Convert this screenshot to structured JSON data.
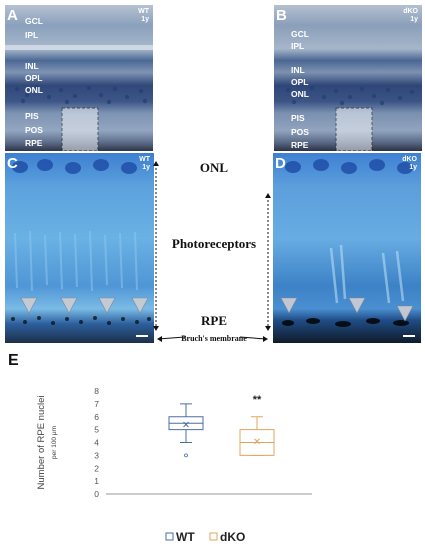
{
  "panels": {
    "A": {
      "letter": "A",
      "tag_group": "WT",
      "tag_age": "1y",
      "layers": [
        "GCL",
        "IPL",
        "INL",
        "OPL",
        "ONL",
        "PIS",
        "POS",
        "RPE"
      ]
    },
    "B": {
      "letter": "B",
      "tag_group": "dKO",
      "tag_age": "1y",
      "layers": [
        "GCL",
        "IPL",
        "INL",
        "OPL",
        "ONL",
        "PIS",
        "POS",
        "RPE"
      ]
    },
    "C": {
      "letter": "C",
      "tag_group": "WT",
      "tag_age": "1y"
    },
    "D": {
      "letter": "D",
      "tag_group": "dKO",
      "tag_age": "1y"
    }
  },
  "middle_labels": {
    "onl": "ONL",
    "photoreceptors": "Photoreceptors",
    "rpe": "RPE",
    "bruchs": "Bruch's membrane"
  },
  "panel_e": {
    "letter": "E"
  },
  "chart_data": {
    "type": "box",
    "ylabel": "Number of RPE nuclei",
    "ylabel_unit": "per 100 μm",
    "ylim": [
      0,
      8
    ],
    "yticks": [
      0,
      1,
      2,
      3,
      4,
      5,
      6,
      7,
      8
    ],
    "significance": "**",
    "series": [
      {
        "name": "WT",
        "color": "#4a6fa5",
        "min": 4,
        "q1": 5,
        "median": 5.5,
        "q3": 6,
        "max": 7,
        "mean": 5.4,
        "outliers": [
          3
        ]
      },
      {
        "name": "dKO",
        "color": "#e3a45e",
        "min": 3,
        "q1": 3,
        "median": 4,
        "q3": 5,
        "max": 6,
        "mean": 4.1,
        "outliers": []
      }
    ],
    "legend": {
      "placement": "bottom-center",
      "items": [
        "WT",
        "dKO"
      ]
    }
  }
}
